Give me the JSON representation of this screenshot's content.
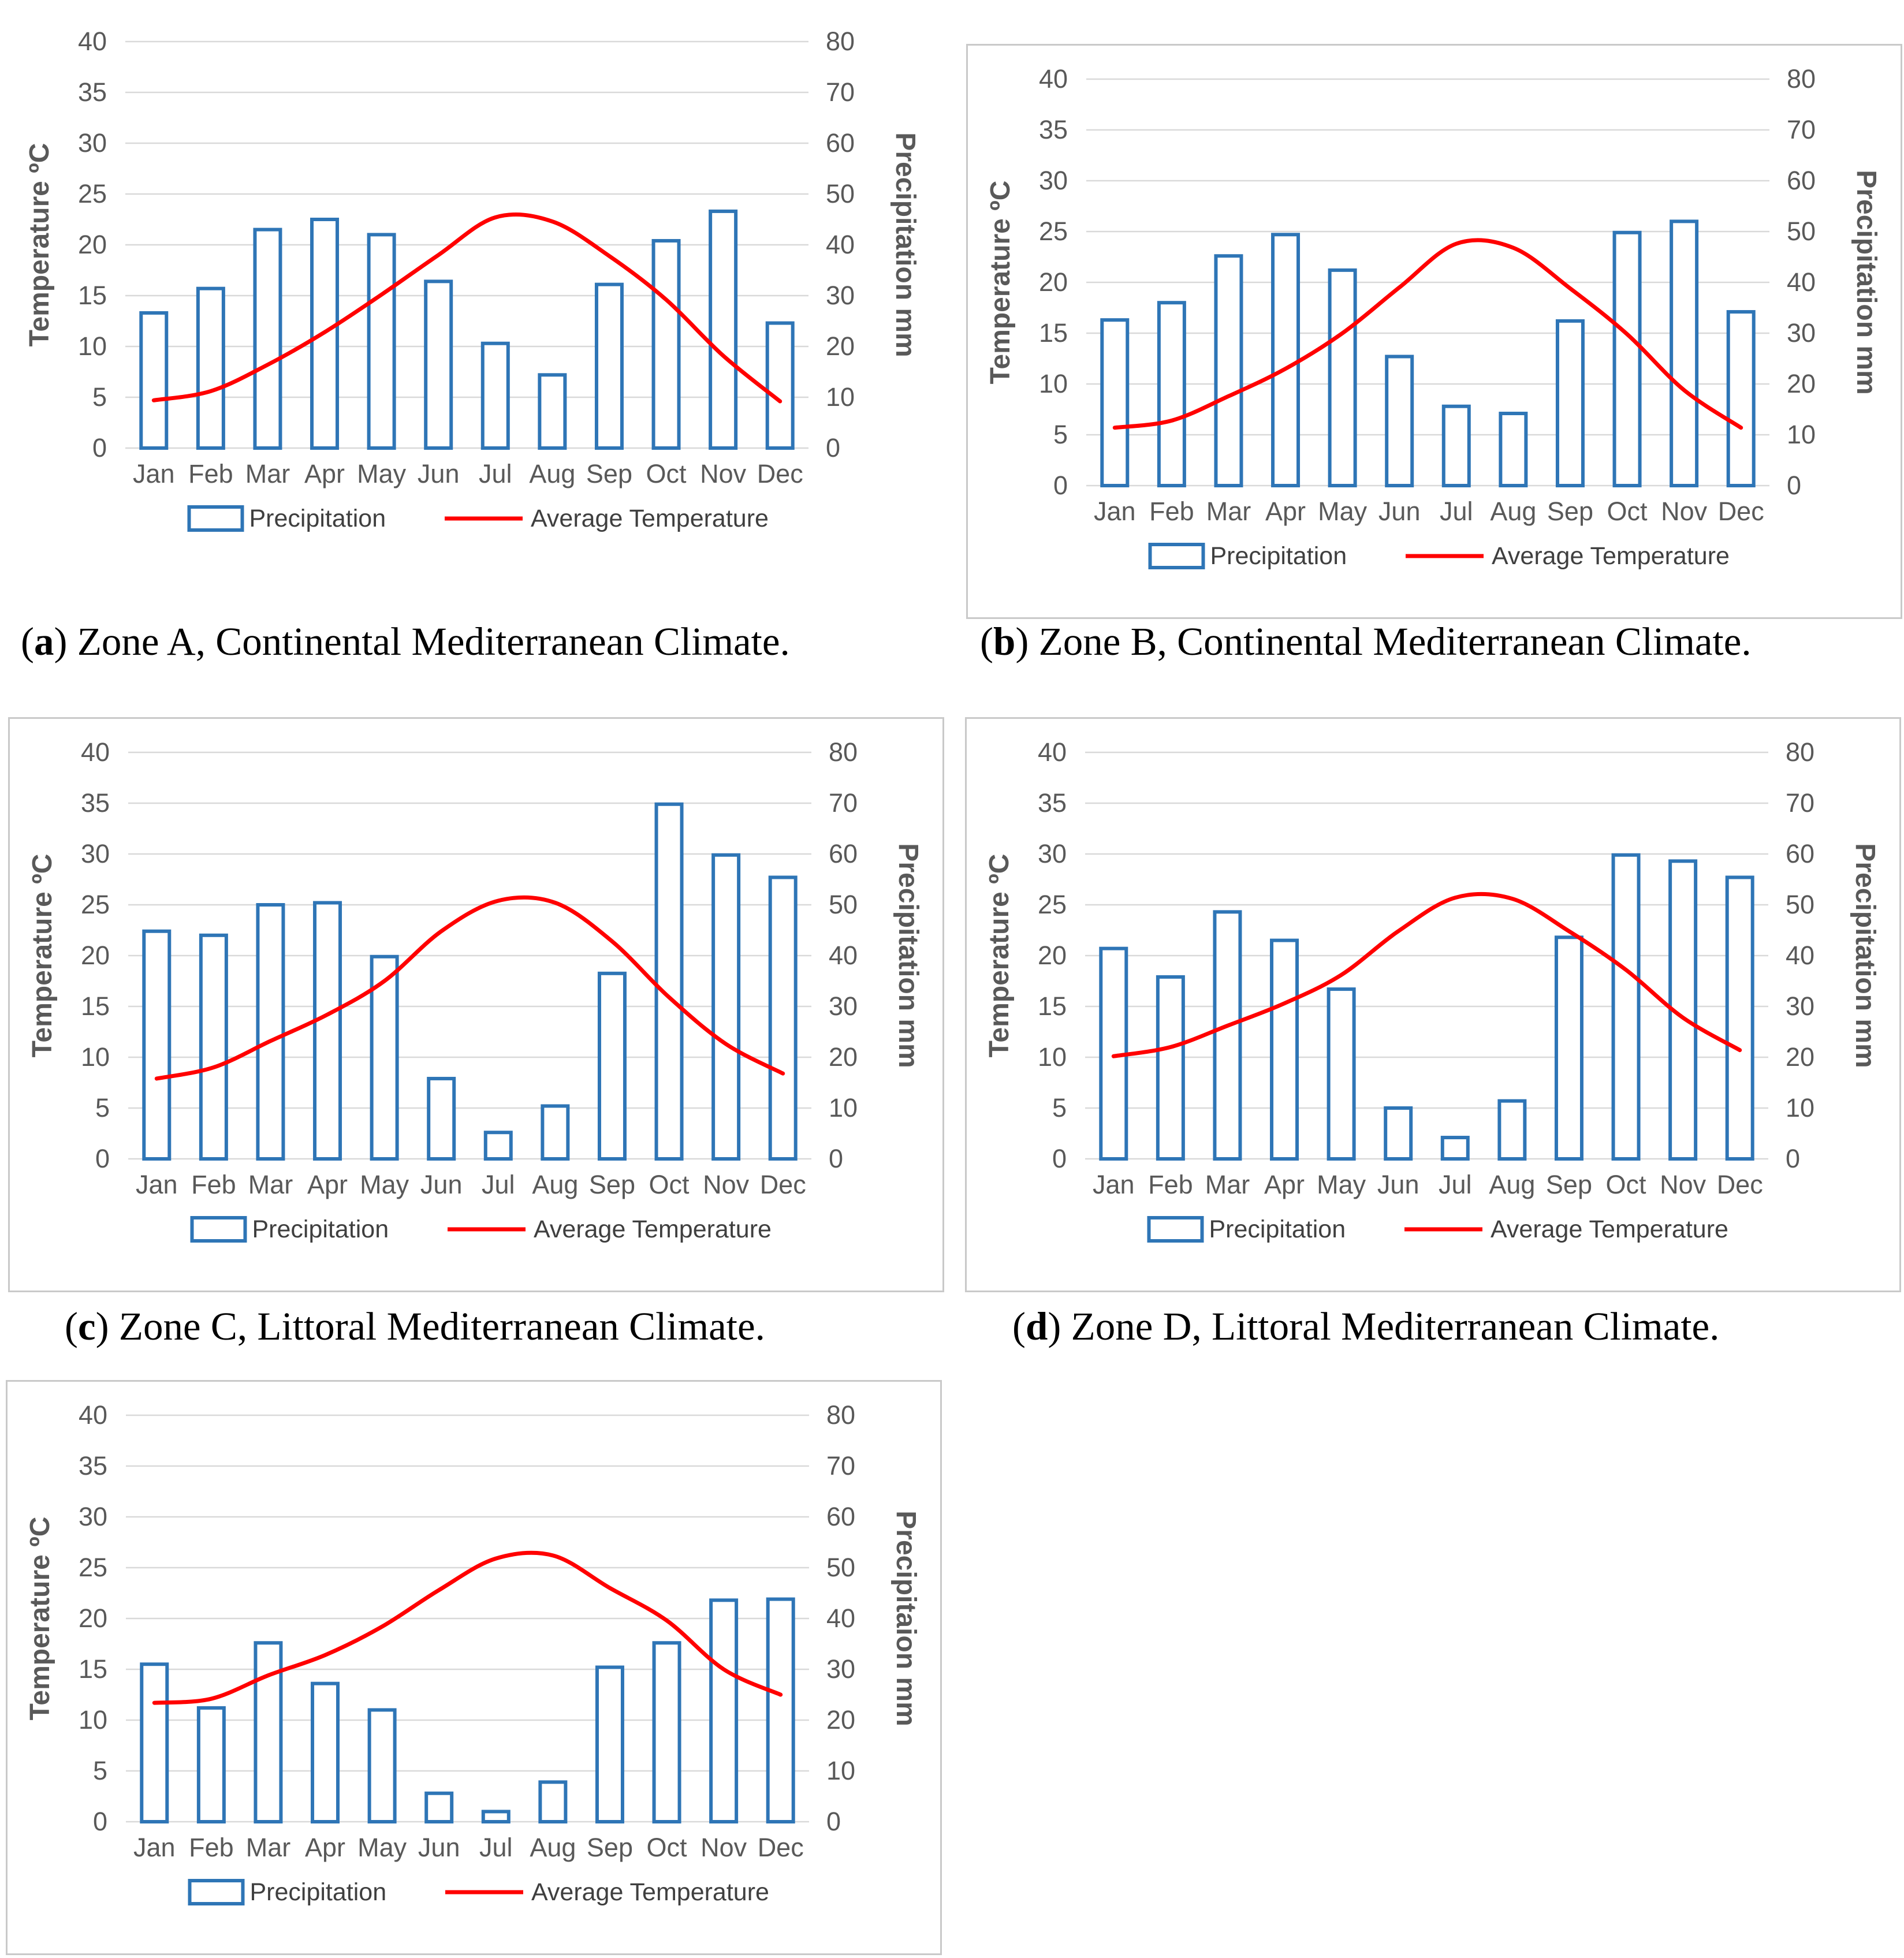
{
  "page": {
    "background": "#ffffff"
  },
  "colors": {
    "bar_stroke": "#2E75B6",
    "bar_fill": "#FFFFFF",
    "line": "#FF0000",
    "grid": "#D9D9D9",
    "axis_text": "#595959",
    "axis_title_text": "#595959",
    "month_text": "#595959",
    "legend_text": "#3F3F3F",
    "box_border": "#C9C9C9"
  },
  "chart_data": [
    {
      "id": "a",
      "type": "combo_bar_line",
      "categories": [
        "Jan",
        "Feb",
        "Mar",
        "Apr",
        "May",
        "Jun",
        "Jul",
        "Aug",
        "Sep",
        "Oct",
        "Nov",
        "Dec"
      ],
      "series": [
        {
          "name": "Precipitation",
          "type": "bar",
          "axis": "right",
          "unit": "mm",
          "values": [
            26.6,
            31.4,
            43.0,
            45.0,
            42.0,
            32.8,
            20.6,
            14.4,
            32.2,
            40.8,
            46.6,
            24.6
          ]
        },
        {
          "name": "Average Temperature",
          "type": "line",
          "axis": "left",
          "unit": "C",
          "values": [
            4.7,
            5.6,
            8.2,
            11.4,
            15.1,
            19.0,
            22.7,
            22.3,
            18.9,
            14.6,
            9.1,
            4.6
          ]
        }
      ],
      "left_axis": {
        "title": "Temperature ºC",
        "min": 0,
        "max": 40,
        "step": 5
      },
      "right_axis": {
        "title": "Precipitation mm",
        "min": 0,
        "max": 80,
        "step": 10
      },
      "grid": "horizontal",
      "legend_position": "bottom",
      "border": false,
      "caption": {
        "open": "(",
        "letter": "a",
        "close": ")",
        "text": " Zone A, Continental Mediterranean Climate."
      }
    },
    {
      "id": "b",
      "type": "combo_bar_line",
      "categories": [
        "Jan",
        "Feb",
        "Mar",
        "Apr",
        "May",
        "Jun",
        "Jul",
        "Aug",
        "Sep",
        "Oct",
        "Nov",
        "Dec"
      ],
      "series": [
        {
          "name": "Precipitation",
          "type": "bar",
          "axis": "right",
          "unit": "mm",
          "values": [
            32.6,
            36.0,
            45.2,
            49.4,
            42.4,
            25.4,
            15.6,
            14.2,
            32.4,
            49.8,
            52.0,
            34.2
          ]
        },
        {
          "name": "Average Temperature",
          "type": "line",
          "axis": "left",
          "unit": "C",
          "values": [
            5.7,
            6.4,
            8.8,
            11.5,
            15.0,
            19.5,
            23.8,
            23.4,
            19.4,
            14.9,
            9.4,
            5.7
          ]
        }
      ],
      "left_axis": {
        "title": "Temperature ºC",
        "min": 0,
        "max": 40,
        "step": 5
      },
      "right_axis": {
        "title": "Precipitation mm",
        "min": 0,
        "max": 80,
        "step": 10
      },
      "grid": "horizontal",
      "legend_position": "bottom",
      "border": true,
      "caption": {
        "open": "(",
        "letter": "b",
        "close": ")",
        "text": " Zone B, Continental Mediterranean Climate."
      }
    },
    {
      "id": "c",
      "type": "combo_bar_line",
      "categories": [
        "Jan",
        "Feb",
        "Mar",
        "Apr",
        "May",
        "Jun",
        "Jul",
        "Aug",
        "Sep",
        "Oct",
        "Nov",
        "Dec"
      ],
      "series": [
        {
          "name": "Precipitation",
          "type": "bar",
          "axis": "right",
          "unit": "mm",
          "values": [
            44.8,
            44.0,
            50.0,
            50.4,
            39.8,
            15.8,
            5.2,
            10.4,
            36.5,
            69.8,
            59.8,
            55.4
          ]
        },
        {
          "name": "Average Temperature",
          "type": "line",
          "axis": "left",
          "unit": "C",
          "values": [
            7.9,
            9.0,
            11.6,
            14.2,
            17.5,
            22.4,
            25.4,
            25.2,
            21.4,
            15.9,
            11.3,
            8.4
          ]
        }
      ],
      "left_axis": {
        "title": "Temperature ºC",
        "min": 0,
        "max": 40,
        "step": 5
      },
      "right_axis": {
        "title": "Precipitation mm",
        "min": 0,
        "max": 80,
        "step": 10
      },
      "grid": "horizontal",
      "legend_position": "bottom",
      "border": true,
      "caption": {
        "open": "(",
        "letter": "c",
        "close": ")",
        "text": " Zone C, Littoral Mediterranean Climate."
      }
    },
    {
      "id": "d",
      "type": "combo_bar_line",
      "categories": [
        "Jan",
        "Feb",
        "Mar",
        "Apr",
        "May",
        "Jun",
        "Jul",
        "Aug",
        "Sep",
        "Oct",
        "Nov",
        "Dec"
      ],
      "series": [
        {
          "name": "Precipitation",
          "type": "bar",
          "axis": "right",
          "unit": "mm",
          "values": [
            41.4,
            35.8,
            48.6,
            43.0,
            33.4,
            10.0,
            4.2,
            11.4,
            43.6,
            59.8,
            58.6,
            55.4
          ]
        },
        {
          "name": "Average Temperature",
          "type": "line",
          "axis": "left",
          "unit": "C",
          "values": [
            10.1,
            11.0,
            13.1,
            15.3,
            18.1,
            22.4,
            25.7,
            25.6,
            22.4,
            18.6,
            13.9,
            10.7
          ]
        }
      ],
      "left_axis": {
        "title": "Temperature ºC",
        "min": 0,
        "max": 40,
        "step": 5
      },
      "right_axis": {
        "title": "Precipitation mm",
        "min": 0,
        "max": 80,
        "step": 10
      },
      "grid": "horizontal",
      "legend_position": "bottom",
      "border": true,
      "caption": {
        "open": "(",
        "letter": "d",
        "close": ")",
        "text": " Zone D, Littoral Mediterranean Climate."
      }
    },
    {
      "id": "e",
      "type": "combo_bar_line",
      "categories": [
        "Jan",
        "Feb",
        "Mar",
        "Apr",
        "May",
        "Jun",
        "Jul",
        "Aug",
        "Sep",
        "Oct",
        "Nov",
        "Dec"
      ],
      "series": [
        {
          "name": "Precipitation",
          "type": "bar",
          "axis": "right",
          "unit": "mm",
          "values": [
            31.0,
            22.4,
            35.2,
            27.2,
            22.0,
            5.6,
            2.0,
            7.8,
            30.4,
            35.2,
            43.6,
            43.8
          ]
        },
        {
          "name": "Average Temperature",
          "type": "line",
          "axis": "left",
          "unit": "C",
          "values": [
            11.7,
            12.1,
            14.4,
            16.4,
            19.2,
            22.8,
            25.9,
            26.2,
            23.0,
            19.8,
            15.0,
            12.5
          ]
        }
      ],
      "left_axis": {
        "title": "Temperature ºC",
        "min": 0,
        "max": 40,
        "step": 5
      },
      "right_axis": {
        "title": "Precipitaion mm",
        "min": 0,
        "max": 80,
        "step": 10
      },
      "grid": "horizontal",
      "legend_position": "bottom",
      "border": true,
      "caption": null
    }
  ]
}
